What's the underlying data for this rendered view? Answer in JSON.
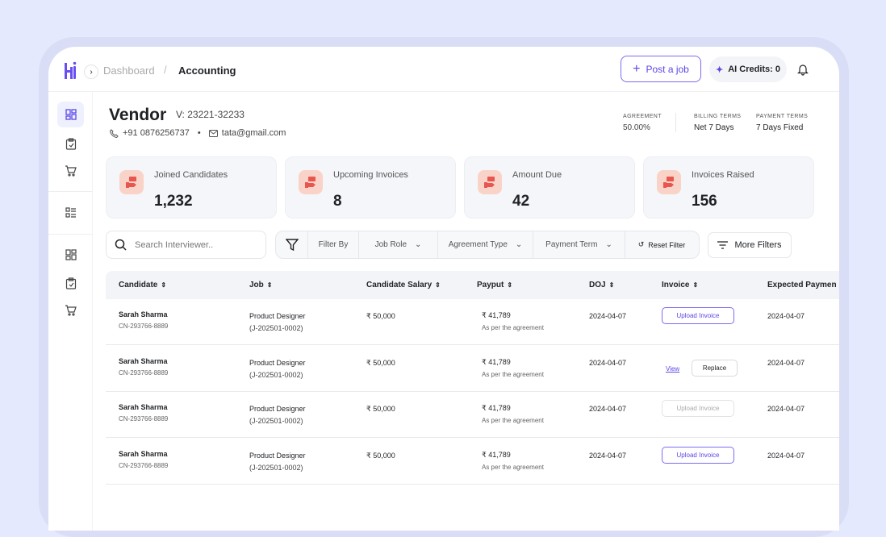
{
  "brand": {
    "accent": "#5b47e8",
    "logo_text": "Hi"
  },
  "breadcrumb": {
    "parent": "Dashboard",
    "separator": "/",
    "current": "Accounting"
  },
  "header": {
    "post_job": "Post a job",
    "ai_credits": "AI Credits: 0"
  },
  "sidebar": {
    "items": [
      {
        "icon": "dashboard-icon",
        "active": true
      },
      {
        "icon": "clipboard-check-icon"
      },
      {
        "icon": "cart-icon"
      },
      {
        "icon": "list-icon"
      },
      {
        "icon": "dashboard-icon"
      },
      {
        "icon": "clipboard-check-icon"
      },
      {
        "icon": "cart-icon"
      }
    ]
  },
  "vendor": {
    "title": "Vendor",
    "id": "V: 23221-32233",
    "phone": "+91 0876256737",
    "bullet": "•",
    "email": "tata@gmail.com"
  },
  "terms": [
    {
      "label": "AGREEMENT",
      "value": "50.00%"
    },
    {
      "label": "BILLING TERMS",
      "value": "Net 7 Days"
    },
    {
      "label": "PAYMENT TERMS",
      "value": "7 Days Fixed"
    }
  ],
  "stats": [
    {
      "label": "Joined Candidates",
      "value": "1,232"
    },
    {
      "label": "Upcoming Invoices",
      "value": "8"
    },
    {
      "label": "Amount Due",
      "value": "42"
    },
    {
      "label": "Invoices Raised",
      "value": "156"
    }
  ],
  "search": {
    "placeholder": "Search Interviewer.."
  },
  "filters": {
    "filter_by": "Filter By",
    "job_role": "Job Role",
    "agreement_type": "Agreement Type",
    "payment_term": "Payment Term",
    "reset": "Reset Filter",
    "more": "More Filters"
  },
  "table": {
    "columns": [
      "Candidate",
      "Job",
      "Candidate Salary",
      "Payput",
      "DOJ",
      "Invoice",
      "Expected Paymen"
    ],
    "rows": [
      {
        "name": "Sarah Sharma",
        "cid": "CN-293766-8889",
        "job": "Product Designer",
        "job_id": "(J-202501-0002)",
        "salary": "₹ 50,000",
        "payout": "₹ 41,789",
        "payout_note": "As per the agreement",
        "doj": "2024-04-07",
        "invoice": "Upload Invoice",
        "invoice_state": "upload",
        "expected": "2024-04-07"
      },
      {
        "name": "Sarah Sharma",
        "cid": "CN-293766-8889",
        "job": "Product Designer",
        "job_id": "(J-202501-0002)",
        "salary": "₹ 50,000",
        "payout": "₹ 41,789",
        "payout_note": "As per the agreement",
        "doj": "2024-04-07",
        "invoice_view": "View",
        "invoice_replace": "Replace",
        "invoice_state": "uploaded",
        "expected": "2024-04-07"
      },
      {
        "name": "Sarah Sharma",
        "cid": "CN-293766-8889",
        "job": "Product Designer",
        "job_id": "(J-202501-0002)",
        "salary": "₹ 50,000",
        "payout": "₹ 41,789",
        "payout_note": "As per the agreement",
        "doj": "2024-04-07",
        "invoice": "Upload Invoice",
        "invoice_state": "disabled",
        "expected": "2024-04-07"
      },
      {
        "name": "Sarah Sharma",
        "cid": "CN-293766-8889",
        "job": "Product Designer",
        "job_id": "(J-202501-0002)",
        "salary": "₹ 50,000",
        "payout": "₹ 41,789",
        "payout_note": "As per the agreement",
        "doj": "2024-04-07",
        "invoice": "Upload Invoice",
        "invoice_state": "upload",
        "expected": "2024-04-07"
      }
    ]
  }
}
